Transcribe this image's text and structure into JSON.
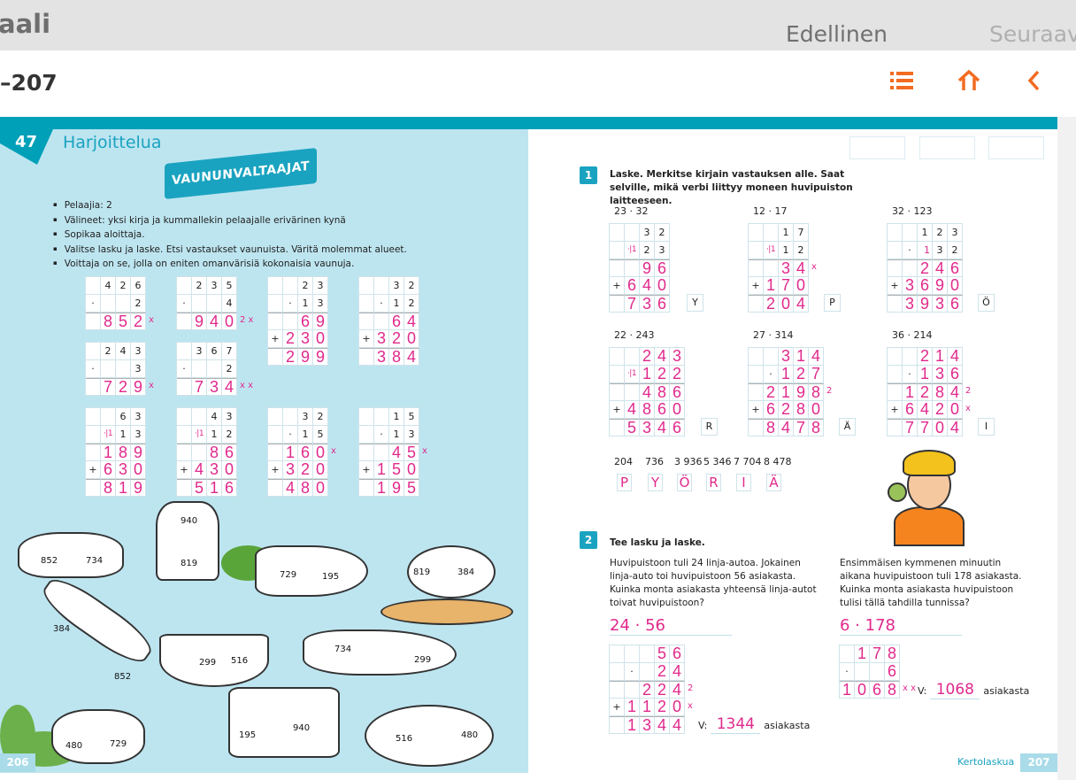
{
  "topbar": {
    "crumb": "aali",
    "prev_label": "Edellinen",
    "next_label": "Seuraav"
  },
  "subbar": {
    "pages": "–207",
    "icons": [
      "list-icon",
      "home-icon",
      "chevron-left-icon"
    ],
    "accent": "#f26b21"
  },
  "left_page": {
    "lesson_number": "47",
    "title": "Harjoittelua",
    "banner": "VAUNUNVALTAAJAT",
    "rules": [
      "Pelaajia: 2",
      "Välineet: yksi kirja ja kummallekin pelaajalle erivärinen kynä",
      "Sopikaa aloittaja.",
      "Valitse lasku ja laske. Etsi vastaukset vaunuista. Väritä molemmat alueet.",
      "Voittaja on se, jolla on eniten omanvärisiä kokonaisia vaunuja."
    ],
    "grids": [
      {
        "rows": [
          [
            "",
            "4",
            "2",
            "6"
          ],
          [
            "·",
            "",
            "",
            "2"
          ],
          [
            "",
            "8",
            "5",
            "2"
          ]
        ],
        "pen": [
          2
        ],
        "rule": [
          2
        ],
        "notes": {
          "2": "x"
        }
      },
      {
        "rows": [
          [
            "",
            "2",
            "3",
            "5"
          ],
          [
            "·",
            "",
            "",
            "4"
          ],
          [
            "",
            "9",
            "4",
            "0"
          ]
        ],
        "pen": [
          2
        ],
        "rule": [
          2
        ],
        "notes": {
          "2": "2 x"
        }
      },
      {
        "rows": [
          [
            "",
            "",
            "2",
            "3"
          ],
          [
            "",
            "·",
            "1",
            "3"
          ],
          [
            "",
            "",
            "6",
            "9"
          ],
          [
            "+",
            "2",
            "3",
            "0"
          ],
          [
            "",
            "2",
            "9",
            "9"
          ]
        ],
        "pen": [
          2,
          3,
          4
        ],
        "rule": [
          2,
          4
        ],
        "notes": {}
      },
      {
        "rows": [
          [
            "",
            "",
            "3",
            "2"
          ],
          [
            "",
            "·",
            "1",
            "2"
          ],
          [
            "",
            "",
            "6",
            "4"
          ],
          [
            "+",
            "3",
            "2",
            "0"
          ],
          [
            "",
            "3",
            "8",
            "4"
          ]
        ],
        "pen": [
          2,
          3,
          4
        ],
        "rule": [
          2,
          4
        ],
        "notes": {}
      },
      {
        "rows": [
          [
            "",
            "2",
            "4",
            "3"
          ],
          [
            "·",
            "",
            "",
            "3"
          ],
          [
            "",
            "7",
            "2",
            "9"
          ]
        ],
        "pen": [
          2
        ],
        "rule": [
          2
        ],
        "notes": {
          "2": "x"
        }
      },
      {
        "rows": [
          [
            "",
            "3",
            "6",
            "7"
          ],
          [
            "·",
            "",
            "",
            "2"
          ],
          [
            "",
            "7",
            "3",
            "4"
          ]
        ],
        "pen": [
          2
        ],
        "rule": [
          2
        ],
        "notes": {
          "2": "x x"
        }
      },
      {
        "rows": [
          [
            "",
            "",
            "6",
            "3"
          ],
          [
            "",
            "·|1",
            "1",
            "3"
          ],
          [
            "",
            "1",
            "8",
            "9"
          ],
          [
            "+",
            "6",
            "3",
            "0"
          ],
          [
            "",
            "8",
            "1",
            "9"
          ]
        ],
        "pen": [
          2,
          3,
          4
        ],
        "rule": [
          2,
          4
        ],
        "notes": {}
      },
      {
        "rows": [
          [
            "",
            "",
            "4",
            "3"
          ],
          [
            "",
            "·|1",
            "1",
            "2"
          ],
          [
            "",
            "",
            "8",
            "6"
          ],
          [
            "+",
            "4",
            "3",
            "0"
          ],
          [
            "",
            "5",
            "1",
            "6"
          ]
        ],
        "pen": [
          2,
          3,
          4
        ],
        "rule": [
          2,
          4
        ],
        "notes": {}
      },
      {
        "rows": [
          [
            "",
            "",
            "3",
            "2"
          ],
          [
            "",
            "·",
            "1",
            "5"
          ],
          [
            "",
            "1",
            "6",
            "0"
          ],
          [
            "+",
            "3",
            "2",
            "0"
          ],
          [
            "",
            "4",
            "8",
            "0"
          ]
        ],
        "pen": [
          2,
          3,
          4
        ],
        "rule": [
          2,
          4
        ],
        "notes": {
          "2": "x"
        }
      },
      {
        "rows": [
          [
            "",
            "",
            "1",
            "5"
          ],
          [
            "",
            "·",
            "1",
            "3"
          ],
          [
            "",
            "",
            "4",
            "5"
          ],
          [
            "+",
            "1",
            "5",
            "0"
          ],
          [
            "",
            "1",
            "9",
            "5"
          ]
        ],
        "pen": [
          2,
          3,
          4
        ],
        "rule": [
          2,
          4
        ],
        "notes": {
          "2": "x"
        }
      }
    ],
    "cart_numbers": [
      "852",
      "734",
      "940",
      "819",
      "729",
      "195",
      "819",
      "384",
      "384",
      "852",
      "299",
      "516",
      "734",
      "299",
      "480",
      "729",
      "195",
      "940",
      "516",
      "480"
    ],
    "page_number": "206"
  },
  "right_page": {
    "task1": {
      "number": "1",
      "instruction": "Laske. Merkitse kirjain vastauksen alle. Saat selville, mikä verbi liittyy moneen huvipuiston laitteeseen.",
      "grids": [
        {
          "label": "23 · 32",
          "letter": "Y",
          "rows": [
            [
              "",
              "",
              "3",
              "2"
            ],
            [
              "",
              "·|1",
              "2",
              "3"
            ],
            [
              "",
              "",
              "9",
              "6"
            ],
            [
              "+",
              "6",
              "4",
              "0"
            ],
            [
              "",
              "7",
              "3",
              "6"
            ]
          ],
          "pen": [
            2,
            3,
            4
          ],
          "rule": [
            2,
            4
          ],
          "notes": {}
        },
        {
          "label": "12 · 17",
          "letter": "P",
          "rows": [
            [
              "",
              "",
              "1",
              "7"
            ],
            [
              "",
              "·|1",
              "1",
              "2"
            ],
            [
              "",
              "",
              "3",
              "4"
            ],
            [
              "+",
              "1",
              "7",
              "0"
            ],
            [
              "",
              "2",
              "0",
              "4"
            ]
          ],
          "pen": [
            2,
            3,
            4
          ],
          "rule": [
            2,
            4
          ],
          "notes": {
            "2": "x"
          }
        },
        {
          "label": "32 · 123",
          "letter": "Ö",
          "rows": [
            [
              "",
              "",
              "1",
              "2",
              "3"
            ],
            [
              "",
              "·",
              "|1",
              "3",
              "2"
            ],
            [
              "",
              "",
              "2",
              "4",
              "6"
            ],
            [
              "+",
              "3",
              "6",
              "9",
              "0"
            ],
            [
              "",
              "3",
              "9",
              "3",
              "6"
            ]
          ],
          "pen": [
            2,
            3,
            4
          ],
          "rule": [
            2,
            4
          ],
          "notes": {}
        },
        {
          "label": "22 · 243",
          "letter": "R",
          "rows": [
            [
              "",
              "",
              "2",
              "4",
              "3"
            ],
            [
              "",
              "·|1",
              "1",
              "2",
              "2"
            ],
            [
              "",
              "",
              "4",
              "8",
              "6"
            ],
            [
              "+",
              "4",
              "8",
              "6",
              "0"
            ],
            [
              "",
              "5",
              "3",
              "4",
              "6"
            ]
          ],
          "pen": [
            0,
            1,
            2,
            3,
            4
          ],
          "rule": [
            2,
            4
          ],
          "notes": {}
        },
        {
          "label": "27 · 314",
          "letter": "Ä",
          "rows": [
            [
              "",
              "",
              "3",
              "1",
              "4"
            ],
            [
              "",
              "·",
              "1",
              "2",
              "7"
            ],
            [
              "",
              "2",
              "1",
              "9",
              "8"
            ],
            [
              "+",
              "6",
              "2",
              "8",
              "0"
            ],
            [
              "",
              "8",
              "4",
              "7",
              "8"
            ]
          ],
          "pen": [
            0,
            1,
            2,
            3,
            4
          ],
          "rule": [
            2,
            4
          ],
          "notes": {
            "2": "2"
          }
        },
        {
          "label": "36 · 214",
          "letter": "I",
          "rows": [
            [
              "",
              "",
              "2",
              "1",
              "4"
            ],
            [
              "",
              "·",
              "1",
              "3",
              "6"
            ],
            [
              "",
              "1",
              "2",
              "8",
              "4"
            ],
            [
              "+",
              "6",
              "4",
              "2",
              "0"
            ],
            [
              "",
              "7",
              "7",
              "0",
              "4"
            ]
          ],
          "pen": [
            0,
            1,
            2,
            3,
            4
          ],
          "rule": [
            2,
            4
          ],
          "notes": {
            "2": "2",
            "3": "x"
          }
        }
      ],
      "answer_numbers": [
        "204",
        "736",
        "3 936",
        "5 346",
        "7 704",
        "8 478"
      ],
      "answer_letters": [
        "P",
        "Y",
        "Ö",
        "R",
        "I",
        "Ä"
      ]
    },
    "task2": {
      "number": "2",
      "instruction": "Tee lasku ja laske.",
      "problems": [
        {
          "text": "Huvipuistoon tuli 24 linja-autoa. Jokainen linja-auto toi huvipuistoon 56 asiakasta. Kuinka monta asiakasta yhteensä linja-autot toivat huvipuistoon?",
          "expression": "24 · 56",
          "rows": [
            [
              "",
              "",
              "",
              "5",
              "6"
            ],
            [
              "",
              "·",
              "",
              "2",
              "4"
            ],
            [
              "",
              "",
              "2",
              "2",
              "4"
            ],
            [
              "+",
              "1",
              "1",
              "2",
              "0"
            ],
            [
              "",
              "1",
              "3",
              "4",
              "4"
            ]
          ],
          "pen": [
            0,
            1,
            2,
            3,
            4
          ],
          "rule": [
            2,
            4
          ],
          "notes": {
            "2": "2",
            "3": "x"
          },
          "answer_prefix": "V:",
          "answer": "1344",
          "unit": "asiakasta"
        },
        {
          "text": "Ensimmäisen kymmenen minuutin aikana huvipuistoon tuli 178 asiakasta. Kuinka monta asiakasta huvipuistoon tulisi tällä tahdilla tunnissa?",
          "expression": "6 · 178",
          "rows": [
            [
              "",
              "1",
              "7",
              "8"
            ],
            [
              "·",
              "",
              "",
              "6"
            ],
            [
              "1",
              "0",
              "6",
              "8"
            ]
          ],
          "pen": [
            0,
            1,
            2
          ],
          "rule": [
            2
          ],
          "notes": {
            "2": "x x"
          },
          "answer_prefix": "V:",
          "answer": "1068",
          "unit": "asiakasta"
        }
      ]
    },
    "chapter": "Kertolaskua",
    "page_number": "207"
  },
  "colors": {
    "teal": "#00a0b8",
    "pen": "#e0298c",
    "left_bg": "#bde5f0"
  }
}
